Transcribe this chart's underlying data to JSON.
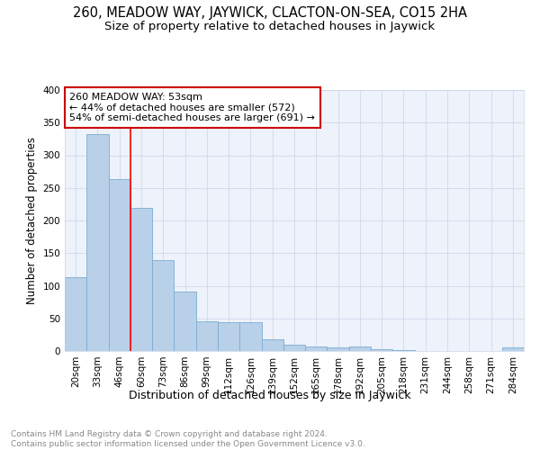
{
  "title": "260, MEADOW WAY, JAYWICK, CLACTON-ON-SEA, CO15 2HA",
  "subtitle": "Size of property relative to detached houses in Jaywick",
  "xlabel": "Distribution of detached houses by size in Jaywick",
  "ylabel": "Number of detached properties",
  "categories": [
    "20sqm",
    "33sqm",
    "46sqm",
    "60sqm",
    "73sqm",
    "86sqm",
    "99sqm",
    "112sqm",
    "126sqm",
    "139sqm",
    "152sqm",
    "165sqm",
    "178sqm",
    "192sqm",
    "205sqm",
    "218sqm",
    "231sqm",
    "244sqm",
    "258sqm",
    "271sqm",
    "284sqm"
  ],
  "values": [
    113,
    333,
    264,
    220,
    139,
    91,
    45,
    44,
    44,
    18,
    10,
    7,
    6,
    7,
    3,
    2,
    0,
    0,
    0,
    0,
    5
  ],
  "bar_color": "#b8d0e8",
  "bar_edge_color": "#7aadd4",
  "background_color": "#eef2fa",
  "grid_color": "#c8d4e8",
  "annotation_box_text": "260 MEADOW WAY: 53sqm\n← 44% of detached houses are smaller (572)\n54% of semi-detached houses are larger (691) →",
  "annotation_box_color": "#ffffff",
  "annotation_box_edge_color": "#cc0000",
  "red_line_x": 2.5,
  "ylim": [
    0,
    400
  ],
  "yticks": [
    0,
    50,
    100,
    150,
    200,
    250,
    300,
    350,
    400
  ],
  "footer_text": "Contains HM Land Registry data © Crown copyright and database right 2024.\nContains public sector information licensed under the Open Government Licence v3.0.",
  "title_fontsize": 10.5,
  "subtitle_fontsize": 9.5,
  "xlabel_fontsize": 9,
  "ylabel_fontsize": 8.5,
  "tick_fontsize": 7.5,
  "annotation_fontsize": 8,
  "footer_fontsize": 6.5
}
